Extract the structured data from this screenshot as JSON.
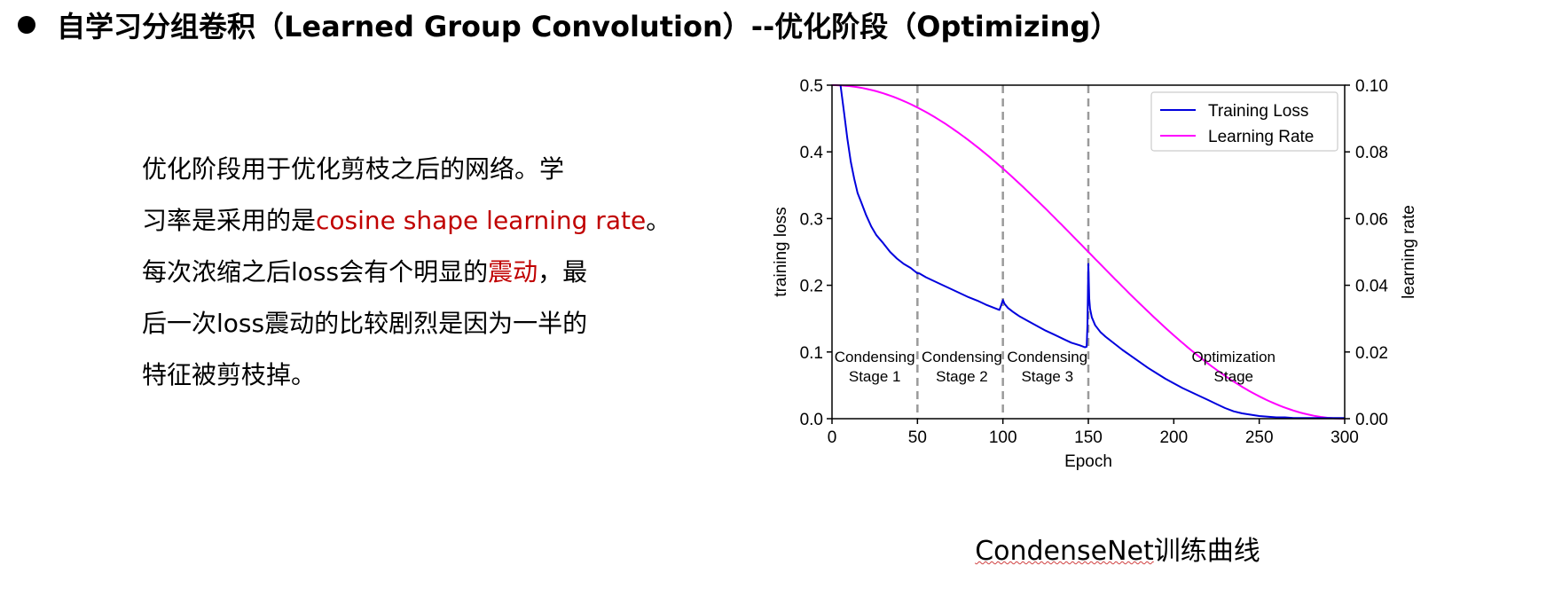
{
  "heading": {
    "text": "自学习分组卷积（Learned Group Convolution）--优化阶段（Optimizing）"
  },
  "body": {
    "lines": [
      [
        {
          "t": "优化阶段用于优化剪枝之后的网络。学",
          "hl": false
        }
      ],
      [
        {
          "t": "习率是采用的是",
          "hl": false
        },
        {
          "t": "cosine shape learning rate",
          "hl": true
        },
        {
          "t": "。",
          "hl": false
        }
      ],
      [
        {
          "t": "每次浓缩之后loss会有个明显的",
          "hl": false
        },
        {
          "t": "震动",
          "hl": true
        },
        {
          "t": "，最",
          "hl": false
        }
      ],
      [
        {
          "t": "后一次loss震动的比较剧烈是因为一半的",
          "hl": false
        }
      ],
      [
        {
          "t": "特征被剪枝掉。",
          "hl": false
        }
      ]
    ],
    "highlight_color": "#c00000"
  },
  "caption": {
    "underlined": "CondenseNet",
    "rest": "训练曲线"
  },
  "chart_data": {
    "type": "line",
    "xlabel": "Epoch",
    "ylabel": "training loss",
    "y2label": "learning rate",
    "xlim": [
      0,
      300
    ],
    "ylim": [
      0,
      0.5
    ],
    "y2lim": [
      0,
      0.1
    ],
    "xticks": [
      "0",
      "50",
      "100",
      "150",
      "200",
      "250",
      "300"
    ],
    "yticks": [
      "0.0",
      "0.1",
      "0.2",
      "0.3",
      "0.4",
      "0.5"
    ],
    "y2ticks": [
      "0.00",
      "0.02",
      "0.04",
      "0.06",
      "0.08",
      "0.10"
    ],
    "grid": false,
    "legend_position": "top-right",
    "vlines": [
      50,
      100,
      150
    ],
    "annotations": [
      {
        "lines": [
          "Condensing",
          "Stage 1"
        ],
        "x": 25,
        "y": 0.085
      },
      {
        "lines": [
          "Condensing",
          "Stage 2"
        ],
        "x": 76,
        "y": 0.085
      },
      {
        "lines": [
          "Condensing",
          "Stage 3"
        ],
        "x": 126,
        "y": 0.085
      },
      {
        "lines": [
          "Optimization",
          "Stage"
        ],
        "x": 235,
        "y": 0.085
      }
    ],
    "series": [
      {
        "name": "Training Loss",
        "axis": "left",
        "color": "#0000dd",
        "x": [
          5,
          7,
          9,
          11,
          13,
          15,
          17,
          20,
          23,
          26,
          30,
          34,
          38,
          42,
          46,
          49,
          50,
          51,
          55,
          60,
          65,
          70,
          75,
          80,
          85,
          90,
          95,
          98,
          99,
          100,
          101,
          103,
          106,
          110,
          115,
          120,
          125,
          130,
          135,
          140,
          145,
          148,
          149,
          149.5,
          150,
          150.5,
          151,
          152,
          154,
          157,
          160,
          165,
          170,
          175,
          180,
          185,
          190,
          195,
          200,
          205,
          210,
          215,
          220,
          225,
          230,
          235,
          240,
          245,
          250,
          255,
          260,
          265,
          270,
          280,
          290,
          300
        ],
        "values": [
          0.5,
          0.46,
          0.42,
          0.385,
          0.36,
          0.338,
          0.325,
          0.305,
          0.288,
          0.275,
          0.263,
          0.25,
          0.24,
          0.232,
          0.226,
          0.22,
          0.218,
          0.218,
          0.212,
          0.206,
          0.2,
          0.194,
          0.188,
          0.182,
          0.177,
          0.171,
          0.166,
          0.163,
          0.17,
          0.178,
          0.172,
          0.166,
          0.16,
          0.153,
          0.146,
          0.139,
          0.132,
          0.126,
          0.12,
          0.114,
          0.11,
          0.107,
          0.108,
          0.14,
          0.232,
          0.18,
          0.165,
          0.152,
          0.14,
          0.13,
          0.123,
          0.113,
          0.103,
          0.094,
          0.085,
          0.076,
          0.068,
          0.06,
          0.053,
          0.046,
          0.04,
          0.034,
          0.028,
          0.022,
          0.016,
          0.011,
          0.008,
          0.006,
          0.004,
          0.003,
          0.002,
          0.002,
          0.001,
          0.001,
          0.001,
          0.001
        ]
      },
      {
        "name": "Learning Rate",
        "axis": "right",
        "color": "#ff00ff",
        "function": "cosine",
        "lr_max": 0.1,
        "lr_end_epoch": 300
      }
    ]
  }
}
